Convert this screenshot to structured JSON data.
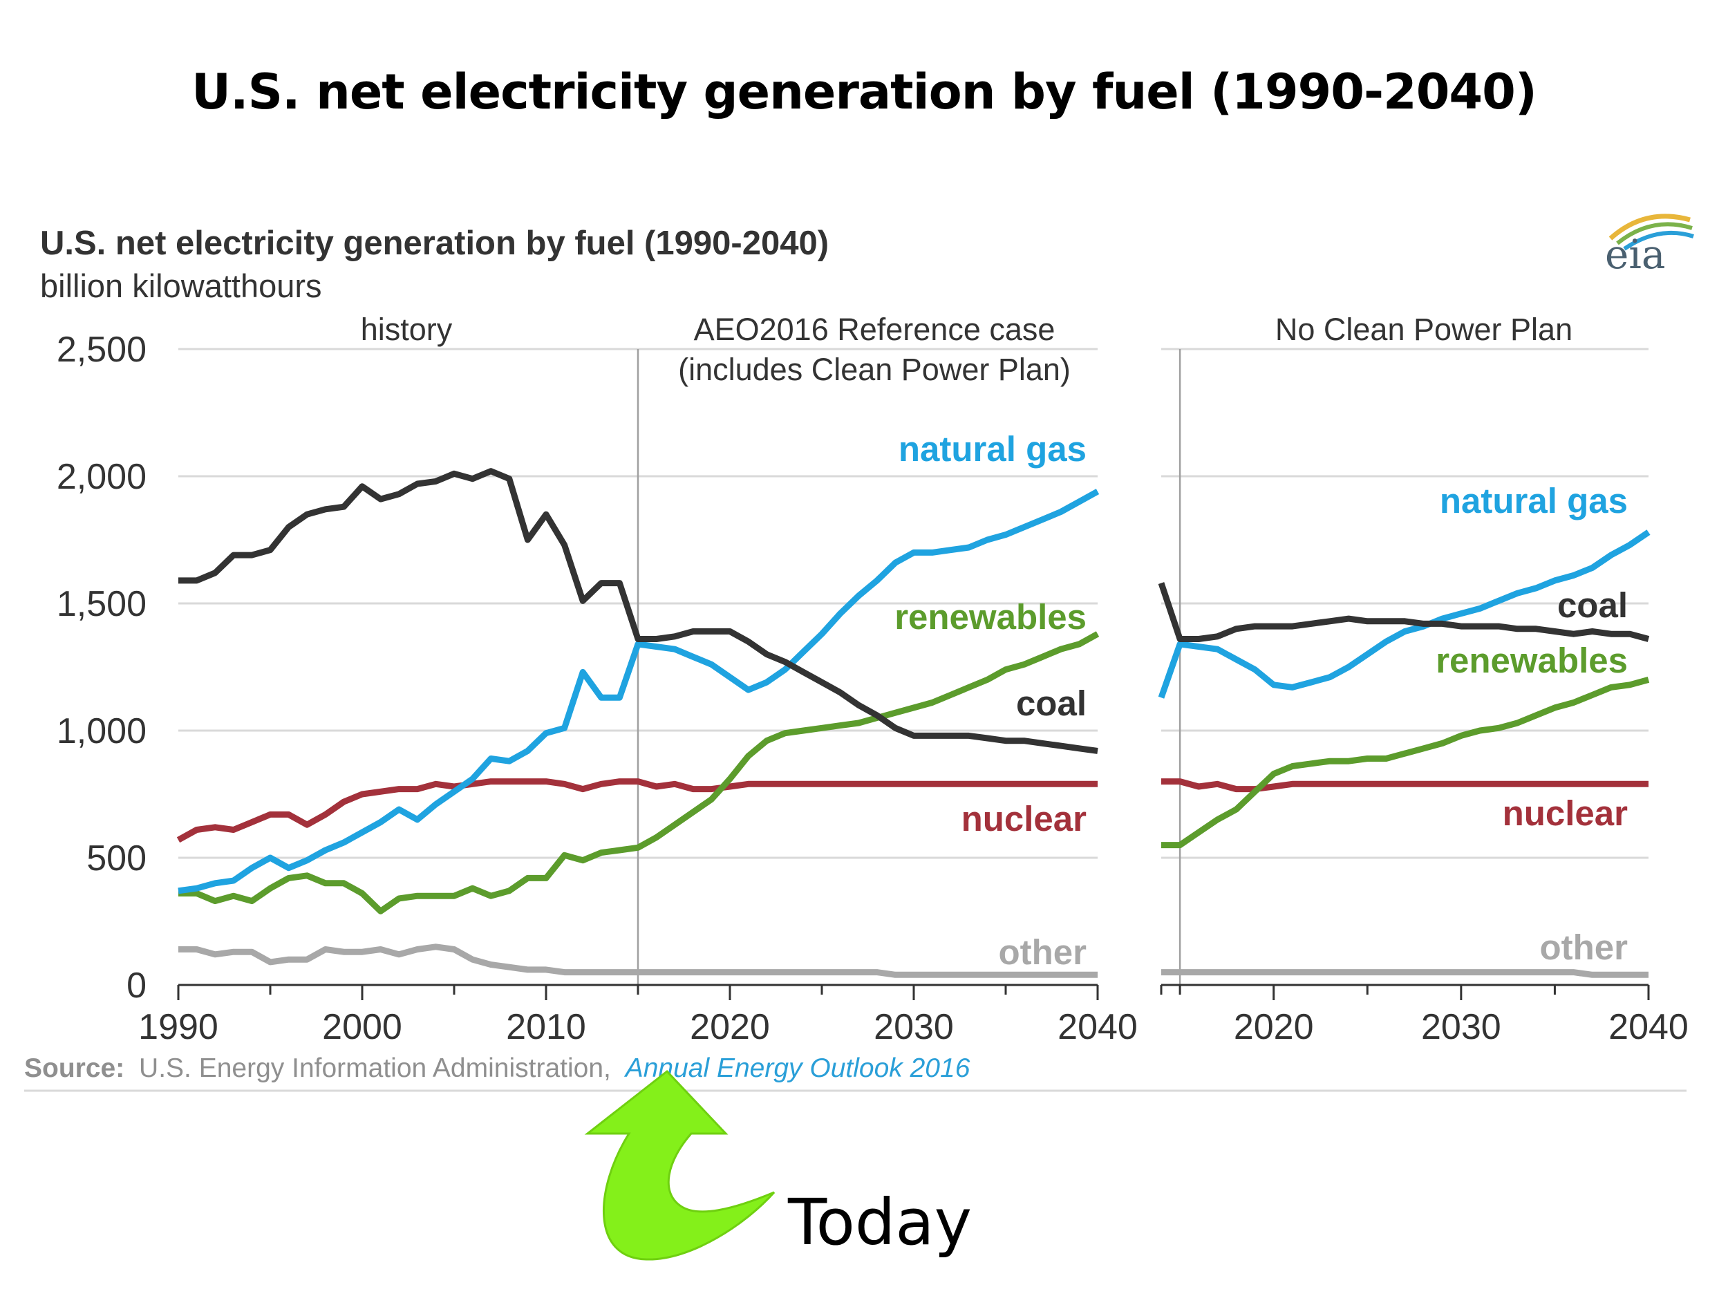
{
  "slide_title": "U.S. net electricity generation by fuel (1990-2040)",
  "logo": {
    "text": "eia",
    "icon": "eia-logo-icon"
  },
  "annotation": {
    "label": "Today",
    "icon": "curved-arrow-icon",
    "color": "#84f01a",
    "points_to_year": 2015
  },
  "source": {
    "prefix": "Source:",
    "text": "U.S. Energy Information Administration,",
    "link": "Annual Energy Outlook 2016"
  },
  "colors": {
    "natural_gas": "#1fa3e0",
    "coal": "#333333",
    "renewables": "#5c9c2c",
    "nuclear": "#a3313b",
    "other": "#a8a8a8",
    "grid": "#d9d9d9",
    "text": "#333333"
  },
  "chart_data": {
    "type": "line",
    "title": "U.S. net electricity generation by fuel (1990-2040)",
    "subtitle": "billion kilowatthours",
    "ylim": [
      0,
      2500
    ],
    "yticks": [
      0,
      500,
      1000,
      1500,
      2000,
      2500
    ],
    "ytick_labels": [
      "0",
      "500",
      "1,000",
      "1,500",
      "2,000",
      "2,500"
    ],
    "grid": true,
    "panels": [
      {
        "id": "main",
        "header_left": "history",
        "header_right": [
          "AEO2016 Reference case",
          "(includes Clean Power Plan)"
        ],
        "xlim": [
          1990,
          2040
        ],
        "xticks": [
          1990,
          2000,
          2010,
          2020,
          2030,
          2040
        ],
        "divider_year": 2015,
        "series": [
          {
            "key": "coal",
            "name": "coal",
            "x": [
              1990,
              1991,
              1992,
              1993,
              1994,
              1995,
              1996,
              1997,
              1998,
              1999,
              2000,
              2001,
              2002,
              2003,
              2004,
              2005,
              2006,
              2007,
              2008,
              2009,
              2010,
              2011,
              2012,
              2013,
              2014,
              2015,
              2016,
              2017,
              2018,
              2019,
              2020,
              2021,
              2022,
              2023,
              2024,
              2025,
              2026,
              2027,
              2028,
              2029,
              2030,
              2031,
              2032,
              2033,
              2034,
              2035,
              2036,
              2037,
              2038,
              2039,
              2040
            ],
            "y": [
              1590,
              1590,
              1620,
              1690,
              1690,
              1710,
              1800,
              1850,
              1870,
              1880,
              1960,
              1910,
              1930,
              1970,
              1980,
              2010,
              1990,
              2020,
              1990,
              1750,
              1850,
              1730,
              1510,
              1580,
              1580,
              1360,
              1360,
              1370,
              1390,
              1390,
              1390,
              1350,
              1300,
              1270,
              1230,
              1190,
              1150,
              1100,
              1060,
              1010,
              980,
              980,
              980,
              980,
              970,
              960,
              960,
              950,
              940,
              930,
              920
            ]
          },
          {
            "key": "natural_gas",
            "name": "natural gas",
            "x": [
              1990,
              1991,
              1992,
              1993,
              1994,
              1995,
              1996,
              1997,
              1998,
              1999,
              2000,
              2001,
              2002,
              2003,
              2004,
              2005,
              2006,
              2007,
              2008,
              2009,
              2010,
              2011,
              2012,
              2013,
              2014,
              2015,
              2016,
              2017,
              2018,
              2019,
              2020,
              2021,
              2022,
              2023,
              2024,
              2025,
              2026,
              2027,
              2028,
              2029,
              2030,
              2031,
              2032,
              2033,
              2034,
              2035,
              2036,
              2037,
              2038,
              2039,
              2040
            ],
            "y": [
              370,
              380,
              400,
              410,
              460,
              500,
              460,
              490,
              530,
              560,
              600,
              640,
              690,
              650,
              710,
              760,
              810,
              890,
              880,
              920,
              990,
              1010,
              1230,
              1130,
              1130,
              1340,
              1330,
              1320,
              1290,
              1260,
              1210,
              1160,
              1190,
              1240,
              1310,
              1380,
              1460,
              1530,
              1590,
              1660,
              1700,
              1700,
              1710,
              1720,
              1750,
              1770,
              1800,
              1830,
              1860,
              1900,
              1940
            ]
          },
          {
            "key": "renewables",
            "name": "renewables",
            "x": [
              1990,
              1991,
              1992,
              1993,
              1994,
              1995,
              1996,
              1997,
              1998,
              1999,
              2000,
              2001,
              2002,
              2003,
              2004,
              2005,
              2006,
              2007,
              2008,
              2009,
              2010,
              2011,
              2012,
              2013,
              2014,
              2015,
              2016,
              2017,
              2018,
              2019,
              2020,
              2021,
              2022,
              2023,
              2024,
              2025,
              2026,
              2027,
              2028,
              2029,
              2030,
              2031,
              2032,
              2033,
              2034,
              2035,
              2036,
              2037,
              2038,
              2039,
              2040
            ],
            "y": [
              360,
              360,
              330,
              350,
              330,
              380,
              420,
              430,
              400,
              400,
              360,
              290,
              340,
              350,
              350,
              350,
              380,
              350,
              370,
              420,
              420,
              510,
              490,
              520,
              530,
              540,
              580,
              630,
              680,
              730,
              810,
              900,
              960,
              990,
              1000,
              1010,
              1020,
              1030,
              1050,
              1070,
              1090,
              1110,
              1140,
              1170,
              1200,
              1240,
              1260,
              1290,
              1320,
              1340,
              1380
            ]
          },
          {
            "key": "nuclear",
            "name": "nuclear",
            "x": [
              1990,
              1991,
              1992,
              1993,
              1994,
              1995,
              1996,
              1997,
              1998,
              1999,
              2000,
              2001,
              2002,
              2003,
              2004,
              2005,
              2006,
              2007,
              2008,
              2009,
              2010,
              2011,
              2012,
              2013,
              2014,
              2015,
              2016,
              2017,
              2018,
              2019,
              2020,
              2021,
              2022,
              2023,
              2024,
              2025,
              2026,
              2027,
              2028,
              2029,
              2030,
              2031,
              2032,
              2033,
              2034,
              2035,
              2036,
              2037,
              2038,
              2039,
              2040
            ],
            "y": [
              570,
              610,
              620,
              610,
              640,
              670,
              670,
              630,
              670,
              720,
              750,
              760,
              770,
              770,
              790,
              780,
              790,
              800,
              800,
              800,
              800,
              790,
              770,
              790,
              800,
              800,
              780,
              790,
              770,
              770,
              780,
              790,
              790,
              790,
              790,
              790,
              790,
              790,
              790,
              790,
              790,
              790,
              790,
              790,
              790,
              790,
              790,
              790,
              790,
              790,
              790
            ]
          },
          {
            "key": "other",
            "name": "other",
            "x": [
              1990,
              1991,
              1992,
              1993,
              1994,
              1995,
              1996,
              1997,
              1998,
              1999,
              2000,
              2001,
              2002,
              2003,
              2004,
              2005,
              2006,
              2007,
              2008,
              2009,
              2010,
              2011,
              2012,
              2015,
              2020,
              2025,
              2028,
              2029,
              2030,
              2035,
              2040
            ],
            "y": [
              140,
              140,
              120,
              130,
              130,
              90,
              100,
              100,
              140,
              130,
              130,
              140,
              120,
              140,
              150,
              140,
              100,
              80,
              70,
              60,
              60,
              50,
              50,
              50,
              50,
              50,
              50,
              40,
              40,
              40,
              40
            ]
          }
        ],
        "labels": [
          {
            "key": "natural_gas",
            "text": "natural gas"
          },
          {
            "key": "renewables",
            "text": "renewables"
          },
          {
            "key": "coal",
            "text": "coal"
          },
          {
            "key": "nuclear",
            "text": "nuclear"
          },
          {
            "key": "other",
            "text": "other"
          }
        ]
      },
      {
        "id": "no_cpp",
        "header": "No Clean Power Plan",
        "xlim": [
          2014,
          2040
        ],
        "xticks": [
          2020,
          2030,
          2040
        ],
        "divider_year": 2015,
        "series": [
          {
            "key": "coal",
            "name": "coal",
            "x": [
              2014,
              2015,
              2016,
              2017,
              2018,
              2019,
              2020,
              2021,
              2022,
              2023,
              2024,
              2025,
              2026,
              2027,
              2028,
              2029,
              2030,
              2031,
              2032,
              2033,
              2034,
              2035,
              2036,
              2037,
              2038,
              2039,
              2040
            ],
            "y": [
              1580,
              1360,
              1360,
              1370,
              1400,
              1410,
              1410,
              1410,
              1420,
              1430,
              1440,
              1430,
              1430,
              1430,
              1420,
              1420,
              1410,
              1410,
              1410,
              1400,
              1400,
              1390,
              1380,
              1390,
              1380,
              1380,
              1360
            ]
          },
          {
            "key": "natural_gas",
            "name": "natural gas",
            "x": [
              2014,
              2015,
              2016,
              2017,
              2018,
              2019,
              2020,
              2021,
              2022,
              2023,
              2024,
              2025,
              2026,
              2027,
              2028,
              2029,
              2030,
              2031,
              2032,
              2033,
              2034,
              2035,
              2036,
              2037,
              2038,
              2039,
              2040
            ],
            "y": [
              1130,
              1340,
              1330,
              1320,
              1280,
              1240,
              1180,
              1170,
              1190,
              1210,
              1250,
              1300,
              1350,
              1390,
              1410,
              1440,
              1460,
              1480,
              1510,
              1540,
              1560,
              1590,
              1610,
              1640,
              1690,
              1730,
              1780
            ]
          },
          {
            "key": "renewables",
            "name": "renewables",
            "x": [
              2014,
              2015,
              2016,
              2017,
              2018,
              2019,
              2020,
              2021,
              2022,
              2023,
              2024,
              2025,
              2026,
              2027,
              2028,
              2029,
              2030,
              2031,
              2032,
              2033,
              2034,
              2035,
              2036,
              2037,
              2038,
              2039,
              2040
            ],
            "y": [
              550,
              550,
              600,
              650,
              690,
              760,
              830,
              860,
              870,
              880,
              880,
              890,
              890,
              910,
              930,
              950,
              980,
              1000,
              1010,
              1030,
              1060,
              1090,
              1110,
              1140,
              1170,
              1180,
              1200
            ]
          },
          {
            "key": "nuclear",
            "name": "nuclear",
            "x": [
              2014,
              2015,
              2016,
              2017,
              2018,
              2019,
              2020,
              2021,
              2022,
              2025,
              2030,
              2035,
              2040
            ],
            "y": [
              800,
              800,
              780,
              790,
              770,
              770,
              780,
              790,
              790,
              790,
              790,
              790,
              790
            ]
          },
          {
            "key": "other",
            "name": "other",
            "x": [
              2014,
              2020,
              2030,
              2036,
              2037,
              2038,
              2040
            ],
            "y": [
              50,
              50,
              50,
              50,
              40,
              40,
              40
            ]
          }
        ],
        "labels": [
          {
            "key": "natural_gas",
            "text": "natural gas"
          },
          {
            "key": "coal",
            "text": "coal"
          },
          {
            "key": "renewables",
            "text": "renewables"
          },
          {
            "key": "nuclear",
            "text": "nuclear"
          },
          {
            "key": "other",
            "text": "other"
          }
        ]
      }
    ]
  }
}
